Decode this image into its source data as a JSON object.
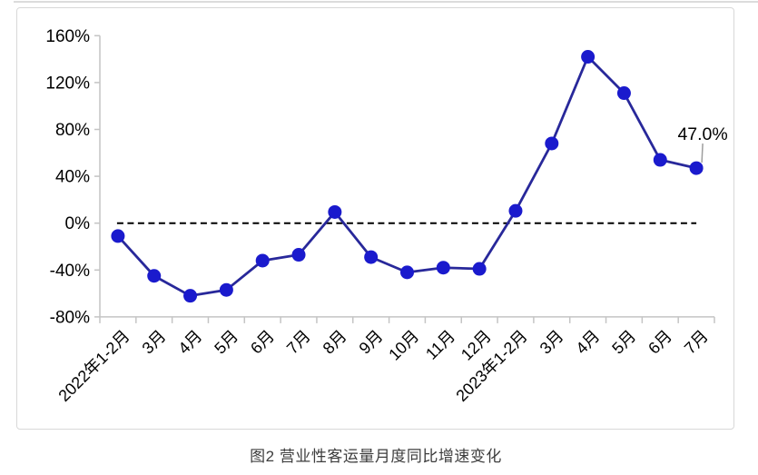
{
  "figure": {
    "caption": "图2 营业性客运量月度同比增速变化"
  },
  "chart_data": {
    "type": "line",
    "title": "营业性客运量月度同比增速变化",
    "categories": [
      "2022年1-2月",
      "3月",
      "4月",
      "5月",
      "6月",
      "7月",
      "8月",
      "9月",
      "10月",
      "11月",
      "12月",
      "2023年1-2月",
      "3月",
      "4月",
      "5月",
      "6月",
      "7月"
    ],
    "values": [
      -11,
      -45,
      -62,
      -57,
      -32,
      -27,
      9.5,
      -29,
      -42,
      -38,
      -39,
      10.5,
      68,
      142,
      111,
      54,
      47
    ],
    "unit": "%",
    "ylim": [
      -80,
      160
    ],
    "ytick_step": 40,
    "yticks": [
      {
        "value": 160,
        "label": "160%"
      },
      {
        "value": 120,
        "label": "120%"
      },
      {
        "value": 80,
        "label": "80%"
      },
      {
        "value": 40,
        "label": "40%"
      },
      {
        "value": 0,
        "label": "0%"
      },
      {
        "value": -40,
        "label": "-40%"
      },
      {
        "value": -80,
        "label": "-80%"
      }
    ],
    "grid": "off",
    "legend": "none",
    "zero_line_style": "dashed",
    "annotation": {
      "label": "47.0%",
      "index": 16
    },
    "colors": {
      "line": "#28289a",
      "marker": "#1a1acd",
      "axis": "#c4c4c4",
      "zero_line": "#000000",
      "leader_line": "#9e9e9e",
      "tick_text": "#000000",
      "caption_text": "#3d3d3d"
    }
  }
}
